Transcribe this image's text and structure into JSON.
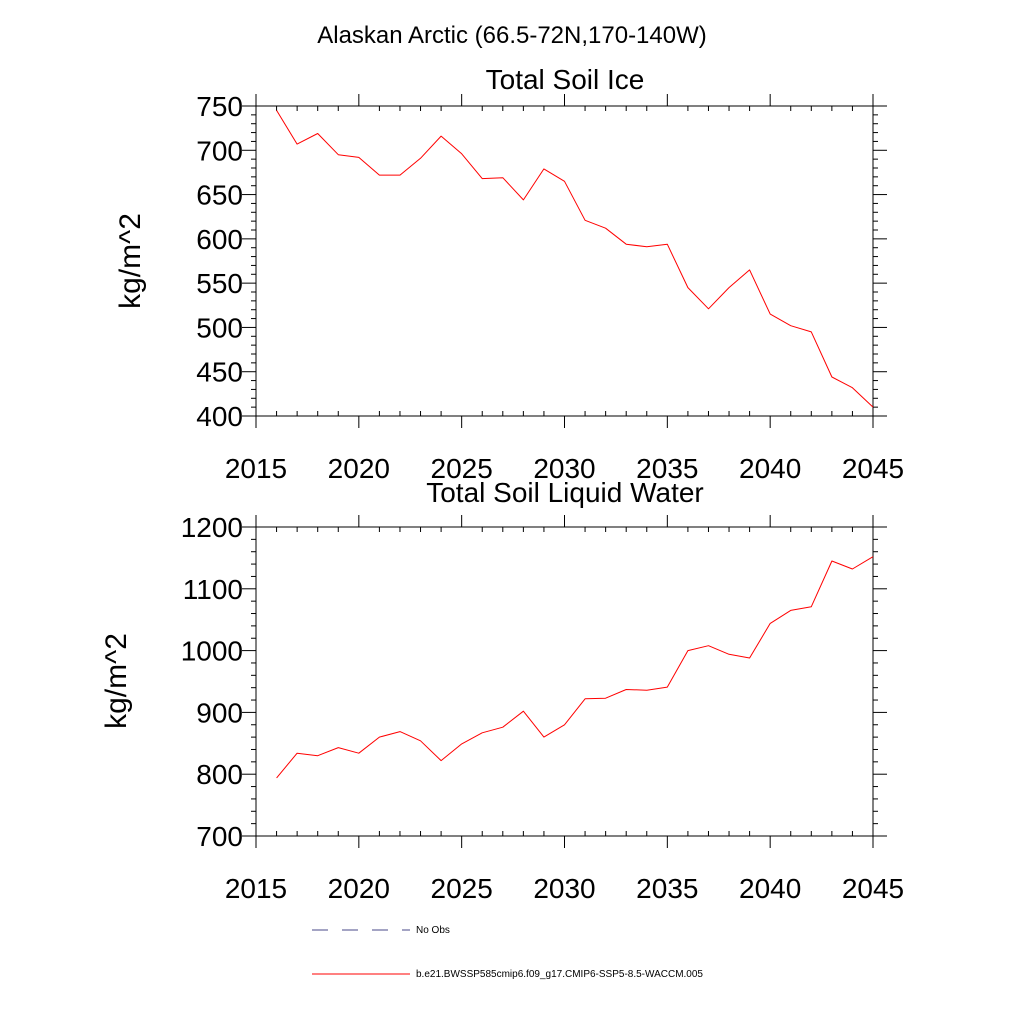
{
  "figure_title": "Alaskan Arctic (66.5-72N,170-140W)",
  "chart_data": [
    {
      "type": "line",
      "title": "Total Soil Ice",
      "xlabel": "",
      "ylabel": "kg/m^2",
      "xlim": [
        2015,
        2045
      ],
      "ylim": [
        400,
        750
      ],
      "xticks": [
        2015,
        2020,
        2025,
        2030,
        2035,
        2040,
        2045
      ],
      "yticks": [
        400,
        450,
        500,
        550,
        600,
        650,
        700,
        750
      ],
      "grid": false,
      "series": [
        {
          "name": "b.e21.BWSSP585cmip6.f09_g17.CMIP6-SSP5-8.5-WACCM.005",
          "color": "#ff0000",
          "x": [
            2016,
            2017,
            2018,
            2019,
            2020,
            2021,
            2022,
            2023,
            2024,
            2025,
            2026,
            2027,
            2028,
            2029,
            2030,
            2031,
            2032,
            2033,
            2034,
            2035,
            2036,
            2037,
            2038,
            2039,
            2040,
            2041,
            2042,
            2043,
            2044,
            2045
          ],
          "y": [
            745,
            707,
            719,
            695,
            692,
            672,
            672,
            691,
            716,
            696,
            668,
            669,
            644,
            679,
            665,
            621,
            612,
            594,
            591,
            594,
            545,
            521,
            545,
            565,
            515,
            502,
            495,
            444,
            432,
            410
          ]
        }
      ]
    },
    {
      "type": "line",
      "title": "Total Soil Liquid Water",
      "xlabel": "",
      "ylabel": "kg/m^2",
      "xlim": [
        2015,
        2045
      ],
      "ylim": [
        700,
        1200
      ],
      "xticks": [
        2015,
        2020,
        2025,
        2030,
        2035,
        2040,
        2045
      ],
      "yticks": [
        700,
        800,
        900,
        1000,
        1100,
        1200
      ],
      "grid": false,
      "series": [
        {
          "name": "b.e21.BWSSP585cmip6.f09_g17.CMIP6-SSP5-8.5-WACCM.005",
          "color": "#ff0000",
          "x": [
            2016,
            2017,
            2018,
            2019,
            2020,
            2021,
            2022,
            2023,
            2024,
            2025,
            2026,
            2027,
            2028,
            2029,
            2030,
            2031,
            2032,
            2033,
            2034,
            2035,
            2036,
            2037,
            2038,
            2039,
            2040,
            2041,
            2042,
            2043,
            2044,
            2045
          ],
          "y": [
            794,
            834,
            830,
            843,
            834,
            860,
            869,
            854,
            822,
            849,
            867,
            876,
            902,
            860,
            880,
            922,
            923,
            937,
            936,
            941,
            1000,
            1008,
            994,
            988,
            1044,
            1065,
            1071,
            1145,
            1132,
            1152
          ]
        }
      ]
    }
  ],
  "legend": {
    "placement": "bottom",
    "entries": [
      {
        "label": "No Obs",
        "style": "dashed",
        "color": "#4a4a8a"
      },
      {
        "label": "b.e21.BWSSP585cmip6.f09_g17.CMIP6-SSP5-8.5-WACCM.005",
        "style": "solid",
        "color": "#ff0000"
      }
    ]
  }
}
